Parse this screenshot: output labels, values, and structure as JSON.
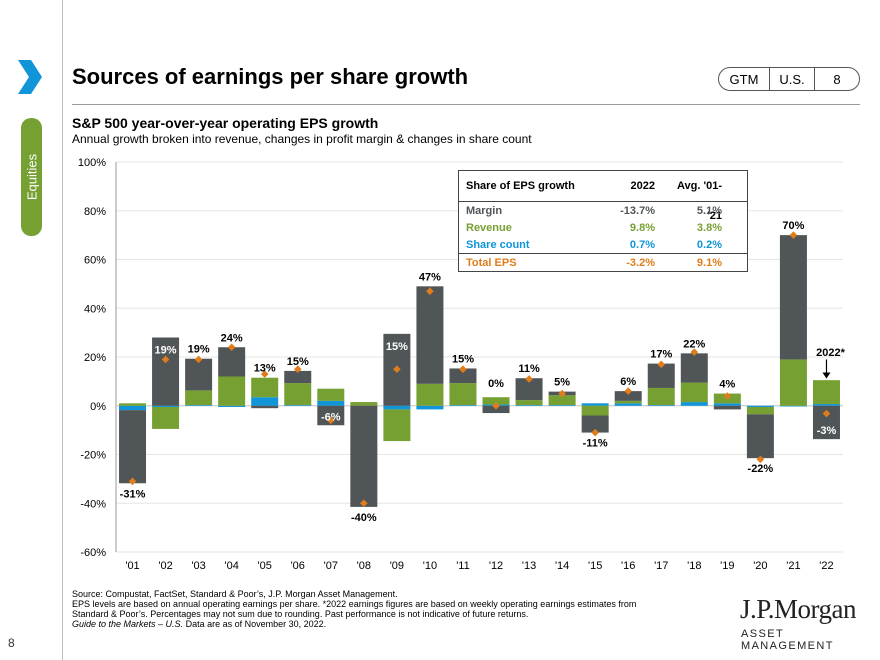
{
  "page": {
    "title": "Sources of earnings per share growth",
    "badge": [
      "GTM",
      "U.S.",
      "8"
    ],
    "side_tab": "Equities",
    "page_number": "8",
    "subtitle": "S&P 500 year-over-year operating EPS growth",
    "subsubtitle": "Annual growth broken into revenue, changes in profit margin & changes in share count",
    "source_lines": [
      "Source: Compustat, FactSet, Standard & Poor’s, J.P. Morgan Asset Management.",
      "EPS levels are based on annual operating earnings per share. *2022 earnings figures are based on weekly operating earnings estimates from",
      "Standard & Poor’s. Percentages may not sum due to rounding. Past performance is not indicative of future returns."
    ],
    "source_italic": "Guide to the Markets – U.S.",
    "source_tail": " Data are as of November 30, 2022.",
    "logo_name": "J.P.Morgan",
    "logo_sub": "ASSET MANAGEMENT"
  },
  "table": {
    "headers": [
      "Share of EPS growth",
      "2022",
      "Avg. '01-'21"
    ],
    "rows": [
      {
        "label": "Margin",
        "v2022": "-13.7%",
        "avg": "5.1%",
        "color": "#505558"
      },
      {
        "label": "Revenue",
        "v2022": "9.8%",
        "avg": "3.8%",
        "color": "#76a032"
      },
      {
        "label": "Share count",
        "v2022": "0.7%",
        "avg": "0.2%",
        "color": "#0f95d8"
      },
      {
        "label": "Total EPS",
        "v2022": "-3.2%",
        "avg": "9.1%",
        "color": "#e07c1a"
      }
    ]
  },
  "chart_data": {
    "type": "bar",
    "stacked": true,
    "ylim": [
      -60,
      100
    ],
    "yticks": [
      "-60%",
      "-40%",
      "-20%",
      "0%",
      "20%",
      "40%",
      "60%",
      "80%",
      "100%"
    ],
    "categories": [
      "'01",
      "'02",
      "'03",
      "'04",
      "'05",
      "'06",
      "'07",
      "'08",
      "'09",
      "'10",
      "'11",
      "'12",
      "'13",
      "'14",
      "'15",
      "'16",
      "'17",
      "'18",
      "'19",
      "'20",
      "'21",
      "'22"
    ],
    "series": [
      {
        "name": "Share count",
        "color": "#0f95d8",
        "values": [
          -1.8,
          -0.5,
          0.3,
          -0.5,
          3.5,
          0.3,
          2.0,
          0.0,
          -1.5,
          -1.5,
          0.3,
          0.5,
          0.3,
          0.3,
          1.0,
          1.0,
          0.3,
          1.5,
          1.0,
          -0.5,
          -0.3,
          0.7
        ]
      },
      {
        "name": "Revenue",
        "color": "#76a032",
        "values": [
          1.0,
          -9.0,
          6.0,
          12.0,
          8.0,
          9.0,
          5.0,
          1.5,
          -13.0,
          9.0,
          9.0,
          3.0,
          2.0,
          4.0,
          -4.0,
          1.0,
          7.0,
          8.0,
          4.0,
          -3.0,
          19.0,
          9.8
        ]
      },
      {
        "name": "Margin",
        "color": "#505558",
        "values": [
          -30.0,
          28.0,
          13.0,
          12.0,
          -1.0,
          5.0,
          -8.0,
          -41.5,
          29.5,
          40.0,
          6.0,
          -3.0,
          9.0,
          1.5,
          -7.0,
          4.0,
          10.0,
          12.0,
          -1.5,
          -18.0,
          51.0,
          -13.7
        ]
      }
    ],
    "total_eps": [
      -31,
      19,
      19,
      24,
      13,
      15,
      -6,
      -40,
      15,
      47,
      15,
      0,
      11,
      5,
      -11,
      6,
      17,
      22,
      4,
      -22,
      70,
      -3.2
    ],
    "total_color": "#e07c1a",
    "labels": [
      "-31%",
      "19%",
      "19%",
      "24%",
      "13%",
      "15%",
      "-6%",
      "-40%",
      "15%",
      "47%",
      "15%",
      "0%",
      "11%",
      "5%",
      "-11%",
      "6%",
      "17%",
      "22%",
      "4%",
      "-22%",
      "70%",
      "-3%"
    ],
    "callout_2022": "2022*",
    "legend": "table top-center",
    "grid": true
  }
}
